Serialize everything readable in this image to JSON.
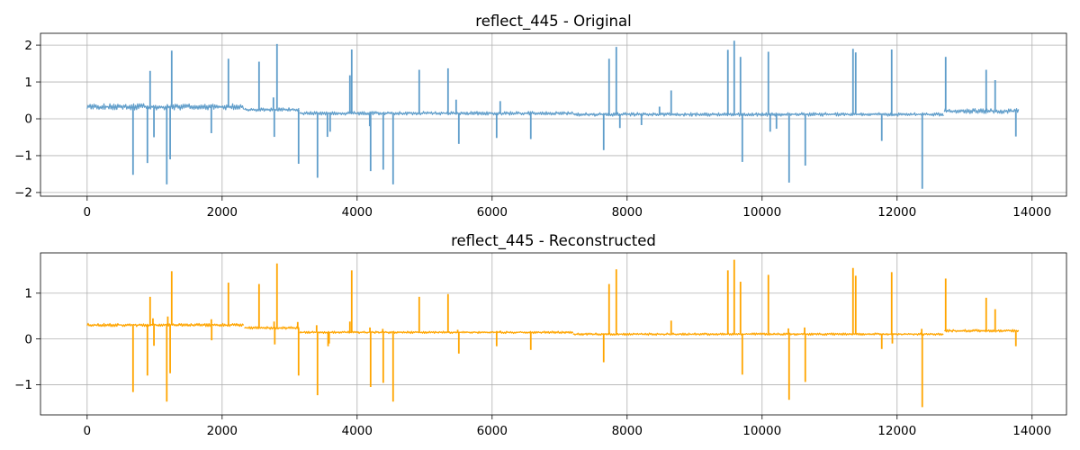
{
  "chart_data": [
    {
      "type": "line",
      "title": "reflect_445 - Original",
      "xlim": [
        -691,
        14510
      ],
      "ylim": [
        -2.1,
        2.32
      ],
      "x_ticks": [
        0,
        2000,
        4000,
        6000,
        8000,
        10000,
        12000,
        14000
      ],
      "x_tick_labels": [
        "0",
        "2000",
        "4000",
        "6000",
        "8000",
        "10000",
        "12000",
        "14000"
      ],
      "y_ticks": [
        -2,
        -1,
        0,
        1,
        2
      ],
      "y_tick_labels": [
        "−2",
        "−1",
        "0",
        "1",
        "2"
      ],
      "grid": true,
      "series": [
        {
          "color": "#5f9dca",
          "baseline": [
            {
              "x_start": 0,
              "x_end": 2330,
              "y_min": 0.24,
              "y_max": 0.41
            },
            {
              "x_start": 2330,
              "x_end": 3150,
              "y_min": 0.2,
              "y_max": 0.3
            },
            {
              "x_start": 3150,
              "x_end": 7200,
              "y_min": 0.1,
              "y_max": 0.2
            },
            {
              "x_start": 7200,
              "x_end": 12700,
              "y_min": 0.07,
              "y_max": 0.17
            },
            {
              "x_start": 12700,
              "x_end": 13813,
              "y_min": 0.14,
              "y_max": 0.28
            }
          ],
          "spikes": [
            [
              680,
              -1.52
            ],
            [
              893,
              -1.2
            ],
            [
              933,
              1.3
            ],
            [
              990,
              -0.5
            ],
            [
              1180,
              -1.78
            ],
            [
              1230,
              -1.1
            ],
            [
              1253,
              1.85
            ],
            [
              1840,
              -0.39
            ],
            [
              2093,
              1.63
            ],
            [
              2547,
              1.55
            ],
            [
              2760,
              0.58
            ],
            [
              2773,
              -0.49
            ],
            [
              2813,
              2.03
            ],
            [
              3133,
              -1.22
            ],
            [
              3413,
              -1.6
            ],
            [
              3560,
              -0.49
            ],
            [
              3600,
              -0.35
            ],
            [
              3893,
              1.18
            ],
            [
              3920,
              1.88
            ],
            [
              4187,
              -0.2
            ],
            [
              4200,
              -1.42
            ],
            [
              4387,
              -1.38
            ],
            [
              4533,
              -1.78
            ],
            [
              4920,
              1.33
            ],
            [
              5347,
              1.37
            ],
            [
              5467,
              0.52
            ],
            [
              5507,
              -0.68
            ],
            [
              6067,
              -0.52
            ],
            [
              6120,
              0.48
            ],
            [
              6573,
              -0.55
            ],
            [
              7653,
              -0.85
            ],
            [
              7733,
              1.63
            ],
            [
              7840,
              1.95
            ],
            [
              7893,
              -0.25
            ],
            [
              8213,
              -0.17
            ],
            [
              8480,
              0.33
            ],
            [
              8653,
              0.77
            ],
            [
              9493,
              1.87
            ],
            [
              9587,
              2.12
            ],
            [
              9680,
              1.68
            ],
            [
              9707,
              -1.17
            ],
            [
              10093,
              1.82
            ],
            [
              10120,
              -0.35
            ],
            [
              10213,
              -0.27
            ],
            [
              10400,
              -1.73
            ],
            [
              10640,
              -1.27
            ],
            [
              11347,
              1.9
            ],
            [
              11387,
              1.8
            ],
            [
              11773,
              -0.6
            ],
            [
              11920,
              1.88
            ],
            [
              12373,
              -1.9
            ],
            [
              12720,
              1.68
            ],
            [
              13320,
              1.33
            ],
            [
              13453,
              1.05
            ],
            [
              13760,
              -0.48
            ]
          ]
        }
      ]
    },
    {
      "type": "line",
      "title": "reflect_445 - Reconstructed",
      "xlim": [
        -691,
        14510
      ],
      "ylim": [
        -1.66,
        1.88
      ],
      "x_ticks": [
        0,
        2000,
        4000,
        6000,
        8000,
        10000,
        12000,
        14000
      ],
      "x_tick_labels": [
        "0",
        "2000",
        "4000",
        "6000",
        "8000",
        "10000",
        "12000",
        "14000"
      ],
      "y_ticks": [
        -1,
        0,
        1
      ],
      "y_tick_labels": [
        "−1",
        "0",
        "1"
      ],
      "grid": true,
      "series": [
        {
          "color": "#ffa500",
          "baseline": [
            {
              "x_start": 0,
              "x_end": 2330,
              "y_min": 0.27,
              "y_max": 0.34
            },
            {
              "x_start": 2330,
              "x_end": 3150,
              "y_min": 0.21,
              "y_max": 0.27
            },
            {
              "x_start": 3150,
              "x_end": 7200,
              "y_min": 0.12,
              "y_max": 0.17
            },
            {
              "x_start": 7200,
              "x_end": 12700,
              "y_min": 0.08,
              "y_max": 0.13
            },
            {
              "x_start": 12700,
              "x_end": 13813,
              "y_min": 0.15,
              "y_max": 0.21
            }
          ],
          "spikes": [
            [
              680,
              -1.16
            ],
            [
              893,
              -0.8
            ],
            [
              933,
              0.92
            ],
            [
              975,
              0.45
            ],
            [
              990,
              -0.15
            ],
            [
              1180,
              -1.37
            ],
            [
              1195,
              0.49
            ],
            [
              1230,
              -0.75
            ],
            [
              1253,
              1.48
            ],
            [
              1840,
              0.43
            ],
            [
              1845,
              -0.03
            ],
            [
              2093,
              1.23
            ],
            [
              2547,
              1.2
            ],
            [
              2770,
              0.38
            ],
            [
              2780,
              -0.12
            ],
            [
              2813,
              1.65
            ],
            [
              3120,
              0.37
            ],
            [
              3133,
              -0.8
            ],
            [
              3400,
              0.3
            ],
            [
              3413,
              -1.23
            ],
            [
              3570,
              -0.16
            ],
            [
              3585,
              -0.1
            ],
            [
              3893,
              0.38
            ],
            [
              3920,
              1.5
            ],
            [
              4190,
              0.25
            ],
            [
              4200,
              -1.05
            ],
            [
              4380,
              0.22
            ],
            [
              4387,
              -0.96
            ],
            [
              4533,
              -1.37
            ],
            [
              4920,
              0.92
            ],
            [
              5347,
              0.98
            ],
            [
              5490,
              0.2
            ],
            [
              5507,
              -0.32
            ],
            [
              6067,
              -0.16
            ],
            [
              6120,
              0.18
            ],
            [
              6573,
              -0.24
            ],
            [
              7653,
              -0.51
            ],
            [
              7733,
              1.2
            ],
            [
              7840,
              1.52
            ],
            [
              8653,
              0.4
            ],
            [
              9493,
              1.5
            ],
            [
              9587,
              1.73
            ],
            [
              9680,
              1.25
            ],
            [
              9707,
              -0.78
            ],
            [
              10093,
              1.4
            ],
            [
              10390,
              0.23
            ],
            [
              10400,
              -1.33
            ],
            [
              10630,
              0.25
            ],
            [
              10640,
              -0.94
            ],
            [
              11347,
              1.55
            ],
            [
              11387,
              1.38
            ],
            [
              11773,
              -0.22
            ],
            [
              11920,
              1.46
            ],
            [
              11930,
              -0.1
            ],
            [
              12365,
              0.22
            ],
            [
              12373,
              -1.49
            ],
            [
              12720,
              1.32
            ],
            [
              13320,
              0.9
            ],
            [
              13453,
              0.65
            ],
            [
              13760,
              -0.16
            ]
          ]
        }
      ]
    }
  ]
}
